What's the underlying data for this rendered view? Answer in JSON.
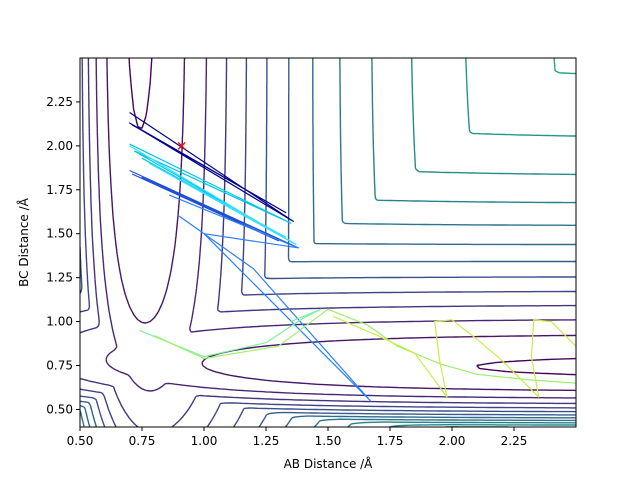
{
  "chart_data": {
    "type": "contour",
    "title": "",
    "xlabel": "AB Distance /Å",
    "ylabel": "BC Distance /Å",
    "xlim": [
      0.5,
      2.5
    ],
    "ylim": [
      0.4,
      2.5
    ],
    "xticks": [
      "0.50",
      "0.75",
      "1.00",
      "1.25",
      "1.50",
      "1.75",
      "2.00",
      "2.25"
    ],
    "yticks": [
      "0.50",
      "0.75",
      "1.00",
      "1.25",
      "1.50",
      "1.75",
      "2.00",
      "2.25"
    ],
    "grid": false,
    "legend": false,
    "colormap": "viridis",
    "surface": {
      "min_point": [
        0.74,
        0.74
      ],
      "saddle_point": [
        0.93,
        0.93
      ],
      "contour_levels": 22
    },
    "marker": {
      "symbol": "x",
      "color": "#ff0000",
      "x": 0.91,
      "y": 2.0
    },
    "trajectories": [
      {
        "color": "#00008b",
        "points": [
          [
            0.7,
            2.19
          ],
          [
            1.36,
            1.57
          ],
          [
            0.7,
            2.13
          ],
          [
            1.33,
            1.62
          ],
          [
            0.71,
            2.12
          ]
        ]
      },
      {
        "color": "#1f4fd6",
        "points": [
          [
            0.7,
            1.86
          ],
          [
            1.38,
            1.42
          ],
          [
            0.75,
            1.82
          ],
          [
            1.3,
            1.46
          ],
          [
            0.71,
            1.84
          ]
        ]
      },
      {
        "color": "#2a7fff",
        "points": [
          [
            0.86,
            1.72
          ],
          [
            1.38,
            1.42
          ],
          [
            1.0,
            1.5
          ],
          [
            1.67,
            0.55
          ],
          [
            1.2,
            1.3
          ],
          [
            0.9,
            1.6
          ]
        ]
      },
      {
        "color": "#00c6e6",
        "points": [
          [
            0.7,
            2.01
          ],
          [
            1.35,
            1.56
          ],
          [
            0.72,
            1.97
          ],
          [
            1.3,
            1.5
          ],
          [
            0.75,
            1.93
          ]
        ]
      },
      {
        "color": "#36e0ff",
        "points": [
          [
            0.7,
            2.0
          ],
          [
            1.37,
            1.44
          ],
          [
            0.78,
            1.9
          ],
          [
            1.33,
            1.48
          ]
        ]
      },
      {
        "color": "#7df0a0",
        "points": [
          [
            0.74,
            0.95
          ],
          [
            1.0,
            0.8
          ],
          [
            1.25,
            0.88
          ],
          [
            1.4,
            1.02
          ],
          [
            1.47,
            1.07
          ],
          [
            1.35,
            1.0
          ]
        ]
      },
      {
        "color": "#9ff06a",
        "points": [
          [
            0.8,
            0.92
          ],
          [
            1.0,
            0.79
          ],
          [
            1.3,
            0.86
          ],
          [
            1.5,
            1.07
          ],
          [
            1.66,
            0.98
          ],
          [
            1.78,
            0.86
          ],
          [
            1.95,
            0.76
          ],
          [
            2.1,
            0.7
          ],
          [
            2.3,
            0.67
          ],
          [
            2.5,
            0.65
          ]
        ]
      },
      {
        "color": "#c8ed48",
        "points": [
          [
            1.52,
            1.03
          ],
          [
            1.7,
            0.92
          ],
          [
            1.85,
            0.82
          ],
          [
            1.98,
            0.57
          ],
          [
            1.95,
            0.78
          ],
          [
            1.93,
            1.0
          ],
          [
            2.0,
            1.01
          ],
          [
            2.1,
            0.9
          ],
          [
            2.2,
            0.78
          ],
          [
            2.35,
            0.57
          ],
          [
            2.32,
            0.8
          ],
          [
            2.33,
            1.01
          ],
          [
            2.4,
            1.0
          ],
          [
            2.5,
            0.86
          ]
        ]
      }
    ]
  }
}
